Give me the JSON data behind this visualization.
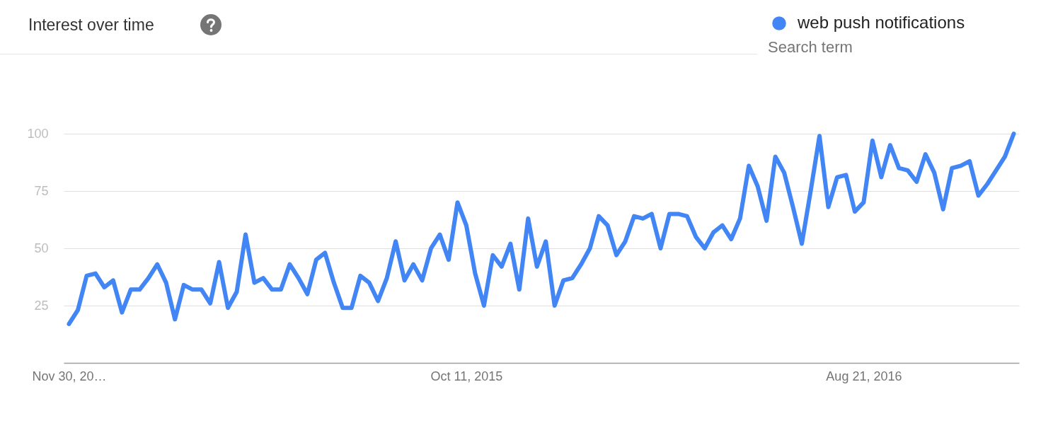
{
  "chart_data": {
    "type": "line",
    "title": "Interest over time",
    "legend_title": "Search term",
    "legend": "top right",
    "grid": "y",
    "categories": [
      "Nov 30, 20…",
      null,
      null,
      null,
      null,
      null,
      null,
      null,
      null,
      null,
      null,
      null,
      null,
      null,
      null,
      null,
      null,
      null,
      null,
      null,
      null,
      null,
      null,
      null,
      null,
      null,
      null,
      null,
      null,
      null,
      null,
      null,
      null,
      null,
      null,
      null,
      null,
      null,
      null,
      null,
      null,
      null,
      null,
      null,
      null,
      "Oct 11, 2015",
      null,
      null,
      null,
      null,
      null,
      null,
      null,
      null,
      null,
      null,
      null,
      null,
      null,
      null,
      null,
      null,
      null,
      null,
      null,
      null,
      null,
      null,
      null,
      null,
      null,
      null,
      null,
      null,
      null,
      null,
      null,
      null,
      null,
      null,
      null,
      null,
      null,
      null,
      null,
      null,
      null,
      null,
      null,
      null,
      "Aug 21, 2016",
      null,
      null,
      null,
      null,
      null,
      null,
      null,
      null,
      null,
      null,
      null,
      null,
      null,
      null,
      null,
      null,
      null
    ],
    "ylim": [
      0,
      100
    ],
    "yticks": [
      25,
      50,
      75,
      100
    ],
    "series": [
      {
        "name": "web push notifications",
        "color": "#4285f4",
        "values": [
          17,
          23,
          38,
          39,
          33,
          36,
          22,
          32,
          32,
          37,
          43,
          35,
          19,
          34,
          32,
          32,
          26,
          44,
          24,
          31,
          56,
          35,
          37,
          32,
          32,
          43,
          37,
          30,
          45,
          48,
          35,
          24,
          24,
          38,
          35,
          27,
          37,
          53,
          36,
          43,
          36,
          50,
          56,
          45,
          70,
          60,
          39,
          25,
          47,
          42,
          52,
          32,
          63,
          42,
          53,
          25,
          36,
          37,
          43,
          50,
          64,
          60,
          47,
          53,
          64,
          63,
          65,
          50,
          65,
          65,
          64,
          55,
          50,
          57,
          60,
          54,
          63,
          86,
          77,
          62,
          90,
          83,
          68,
          52,
          75,
          99,
          68,
          81,
          82,
          66,
          70,
          97,
          81,
          95,
          85,
          84,
          79,
          91,
          83,
          67,
          85,
          86,
          88,
          73,
          78,
          84,
          90,
          100
        ]
      }
    ]
  }
}
